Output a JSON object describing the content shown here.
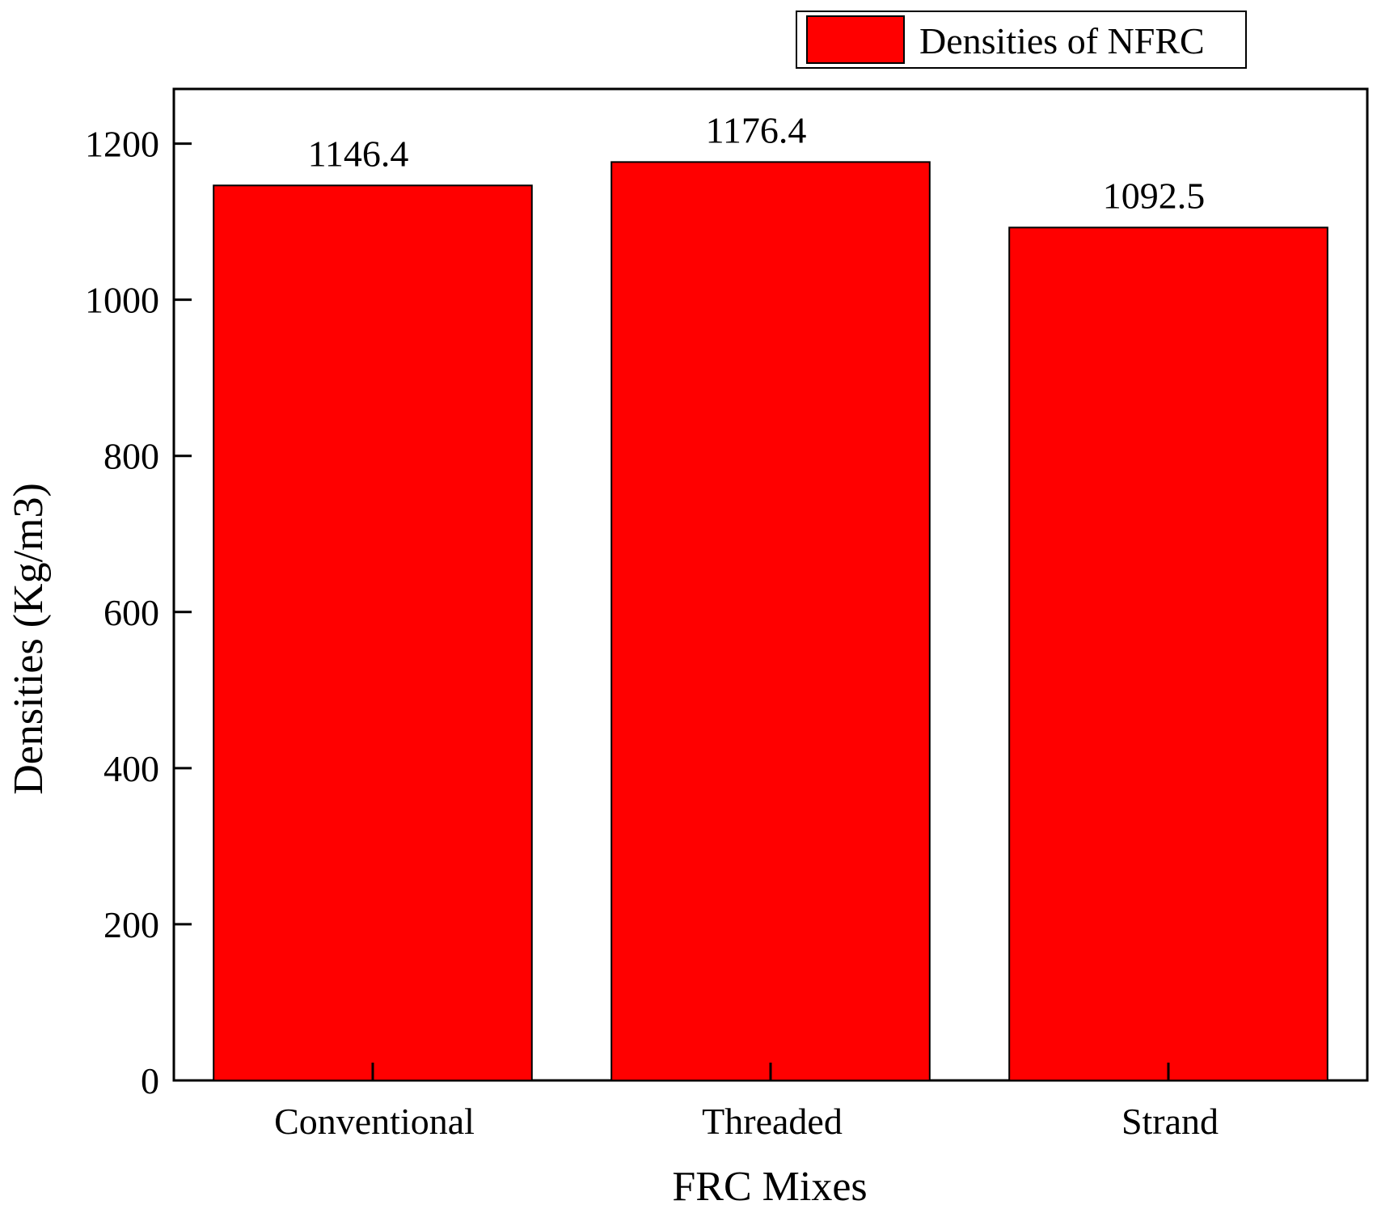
{
  "chart_data": {
    "type": "bar",
    "categories": [
      "Conventional",
      "Threaded",
      "Strand"
    ],
    "series": [
      {
        "name": "Densities of NFRC",
        "values": [
          1146.4,
          1176.4,
          1092.5
        ],
        "color": "#ff0000"
      }
    ],
    "data_labels": [
      "1146.4",
      "1176.4",
      "1092.5"
    ],
    "xlabel": "FRC Mixes",
    "ylabel": "Densities (Kg/m3)",
    "ylim": [
      0,
      1270
    ],
    "yticks": [
      0,
      200,
      400,
      600,
      800,
      1000,
      1200
    ],
    "legend_position": "top-right, above plot",
    "grid": false
  }
}
